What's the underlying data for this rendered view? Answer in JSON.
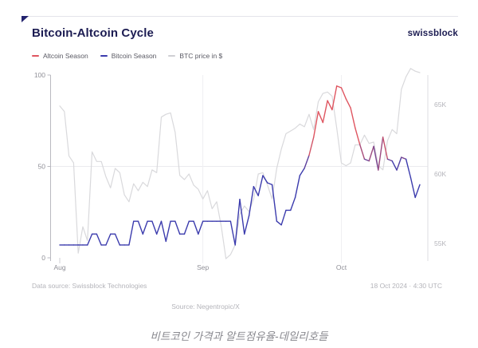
{
  "header": {
    "title": "Bitcoin-Altcoin Cycle",
    "brand": "swissblock"
  },
  "colors": {
    "navy": "#1c1c52",
    "bitcoin_season_blue": "#3b3bad",
    "altcoin_season_red": "#df5560",
    "btc_price_gray": "#d9d9dc"
  },
  "legend": [
    {
      "label": "Altcoin Season",
      "color": "#df5560"
    },
    {
      "label": "Bitcoin Season",
      "color": "#3b3bad"
    },
    {
      "label": "BTC price in $",
      "color": "#cfcfd4"
    }
  ],
  "footer": {
    "data_source": "Data source: Swissblock Technologies",
    "timestamp": "18 Oct 2024 · 4:30 UTC",
    "source_line": "Source: Negentropic/X"
  },
  "caption": "비트코인 가격과 알트점유율-데일리호들",
  "chart_data": {
    "type": "line",
    "title": "Bitcoin-Altcoin Cycle",
    "x_axis": {
      "tick_labels": [
        "Aug",
        "Sep",
        "Oct"
      ],
      "tick_day_indices": [
        0,
        31,
        61
      ],
      "description": "daily points, 1 Aug 2024 - 18 Oct 2024"
    },
    "left_axis": {
      "ticks": [
        0,
        50,
        100
      ],
      "range": [
        0,
        100
      ],
      "gridline_at": 50
    },
    "right_axis": {
      "tick_labels": [
        "55K",
        "60K",
        "65K"
      ],
      "ticks_k": [
        55,
        60,
        65
      ],
      "range_k": [
        54,
        67.5
      ],
      "unit": "USD thousands"
    },
    "series": [
      {
        "name": "Bitcoin/Altcoin season index",
        "axis": "left",
        "colors": {
          "bitcoin_season": "#3b3bad",
          "altcoin_season": "#df5560"
        },
        "color_rule": "blue below 50 (Bitcoin Season), red above ~60 (Altcoin Season), blended between",
        "values": [
          7,
          7,
          7,
          7,
          7,
          7,
          7,
          13,
          13,
          7,
          7,
          13,
          13,
          7,
          7,
          7,
          20,
          20,
          13,
          20,
          20,
          13,
          20,
          9,
          20,
          20,
          13,
          13,
          20,
          20,
          13,
          20,
          20,
          20,
          20,
          20,
          20,
          20,
          7,
          32,
          13,
          23,
          39,
          34,
          45,
          41,
          40,
          20,
          18,
          26,
          26,
          33,
          45,
          49,
          56,
          66,
          80,
          74,
          86,
          81,
          94,
          93,
          87,
          82,
          71,
          62,
          54,
          53,
          61,
          48,
          66,
          54,
          53,
          48,
          55,
          54,
          44,
          33,
          40
        ]
      },
      {
        "name": "BTC price in $",
        "axis": "right",
        "color": "#d9d9dc",
        "unit": "K USD",
        "values": [
          64.9,
          64.5,
          61.3,
          60.8,
          54.3,
          56.2,
          55.2,
          61.6,
          60.9,
          60.9,
          59.8,
          59.0,
          60.4,
          60.1,
          58.5,
          58.0,
          59.3,
          58.8,
          59.4,
          59.1,
          60.3,
          60.1,
          64.1,
          64.3,
          64.4,
          63.0,
          59.9,
          59.6,
          60.0,
          59.2,
          58.9,
          58.2,
          58.8,
          57.5,
          58.0,
          56.2,
          53.9,
          54.2,
          54.9,
          57.1,
          57.7,
          57.3,
          58.2,
          60.0,
          60.1,
          59.2,
          58.2,
          60.4,
          61.8,
          62.9,
          63.1,
          63.3,
          63.6,
          63.4,
          64.3,
          63.2,
          65.2,
          65.8,
          65.9,
          65.6,
          63.3,
          60.8,
          60.6,
          60.8,
          62.1,
          62.1,
          62.8,
          62.2,
          62.3,
          60.6,
          60.3,
          62.4,
          63.2,
          62.9,
          66.1,
          67.0,
          67.6,
          67.4,
          67.3
        ]
      }
    ]
  }
}
